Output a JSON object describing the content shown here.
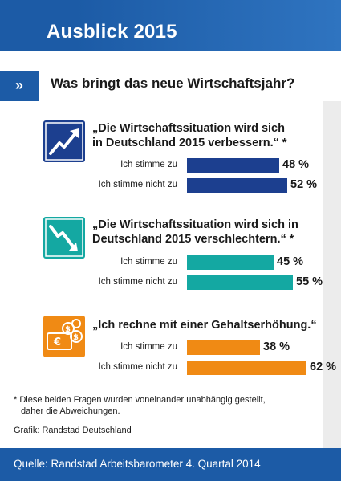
{
  "header": {
    "title": "Ausblick 2015",
    "marker": "»",
    "subtitle": "Was bringt das neue Wirtschaftsjahr?"
  },
  "colors": {
    "brand_blue": "#1c5ba6",
    "bar_blue": "#1c3f8f",
    "bar_teal": "#14a8a2",
    "bar_orange": "#f08a14"
  },
  "chart_data": [
    {
      "type": "bar",
      "orientation": "horizontal",
      "title": "„Die Wirtschaftssituation wird sich in Deutschland 2015 verbessern.“ *",
      "title_lines": [
        "„Die Wirtschaftssituation wird sich",
        "in Deutschland 2015 verbessern.“ *"
      ],
      "icon": "trend-up-icon",
      "color": "#1c3f8f",
      "categories": [
        "Ich stimme zu",
        "Ich stimme nicht zu"
      ],
      "values": [
        48,
        52
      ],
      "value_labels": [
        "48 %",
        "52 %"
      ],
      "unit": "%"
    },
    {
      "type": "bar",
      "orientation": "horizontal",
      "title": "„Die Wirtschaftssituation wird sich in Deutschland 2015 verschlechtern.“ *",
      "title_lines": [
        "„Die Wirtschaftssituation wird sich in",
        "Deutschland 2015 verschlechtern.“ *"
      ],
      "icon": "trend-down-icon",
      "color": "#14a8a2",
      "categories": [
        "Ich stimme zu",
        "Ich stimme nicht zu"
      ],
      "values": [
        45,
        55
      ],
      "value_labels": [
        "45 %",
        "55 %"
      ],
      "unit": "%"
    },
    {
      "type": "bar",
      "orientation": "horizontal",
      "title": "„Ich rechne mit einer Gehaltserhöhung.“",
      "title_lines": [
        "„Ich rechne mit einer Gehaltserhöhung.“"
      ],
      "icon": "money-icon",
      "color": "#f08a14",
      "categories": [
        "Ich stimme zu",
        "Ich stimme nicht zu"
      ],
      "values": [
        38,
        62
      ],
      "value_labels": [
        "38 %",
        "62 %"
      ],
      "unit": "%"
    }
  ],
  "footnote": {
    "line1": "* Diese beiden Fragen wurden voneinander unabhängig gestellt,",
    "line2": "daher die Abweichungen."
  },
  "credit": "Grafik: Randstad Deutschland",
  "source": "Quelle: Randstad Arbeitsbarometer 4. Quartal 2014"
}
